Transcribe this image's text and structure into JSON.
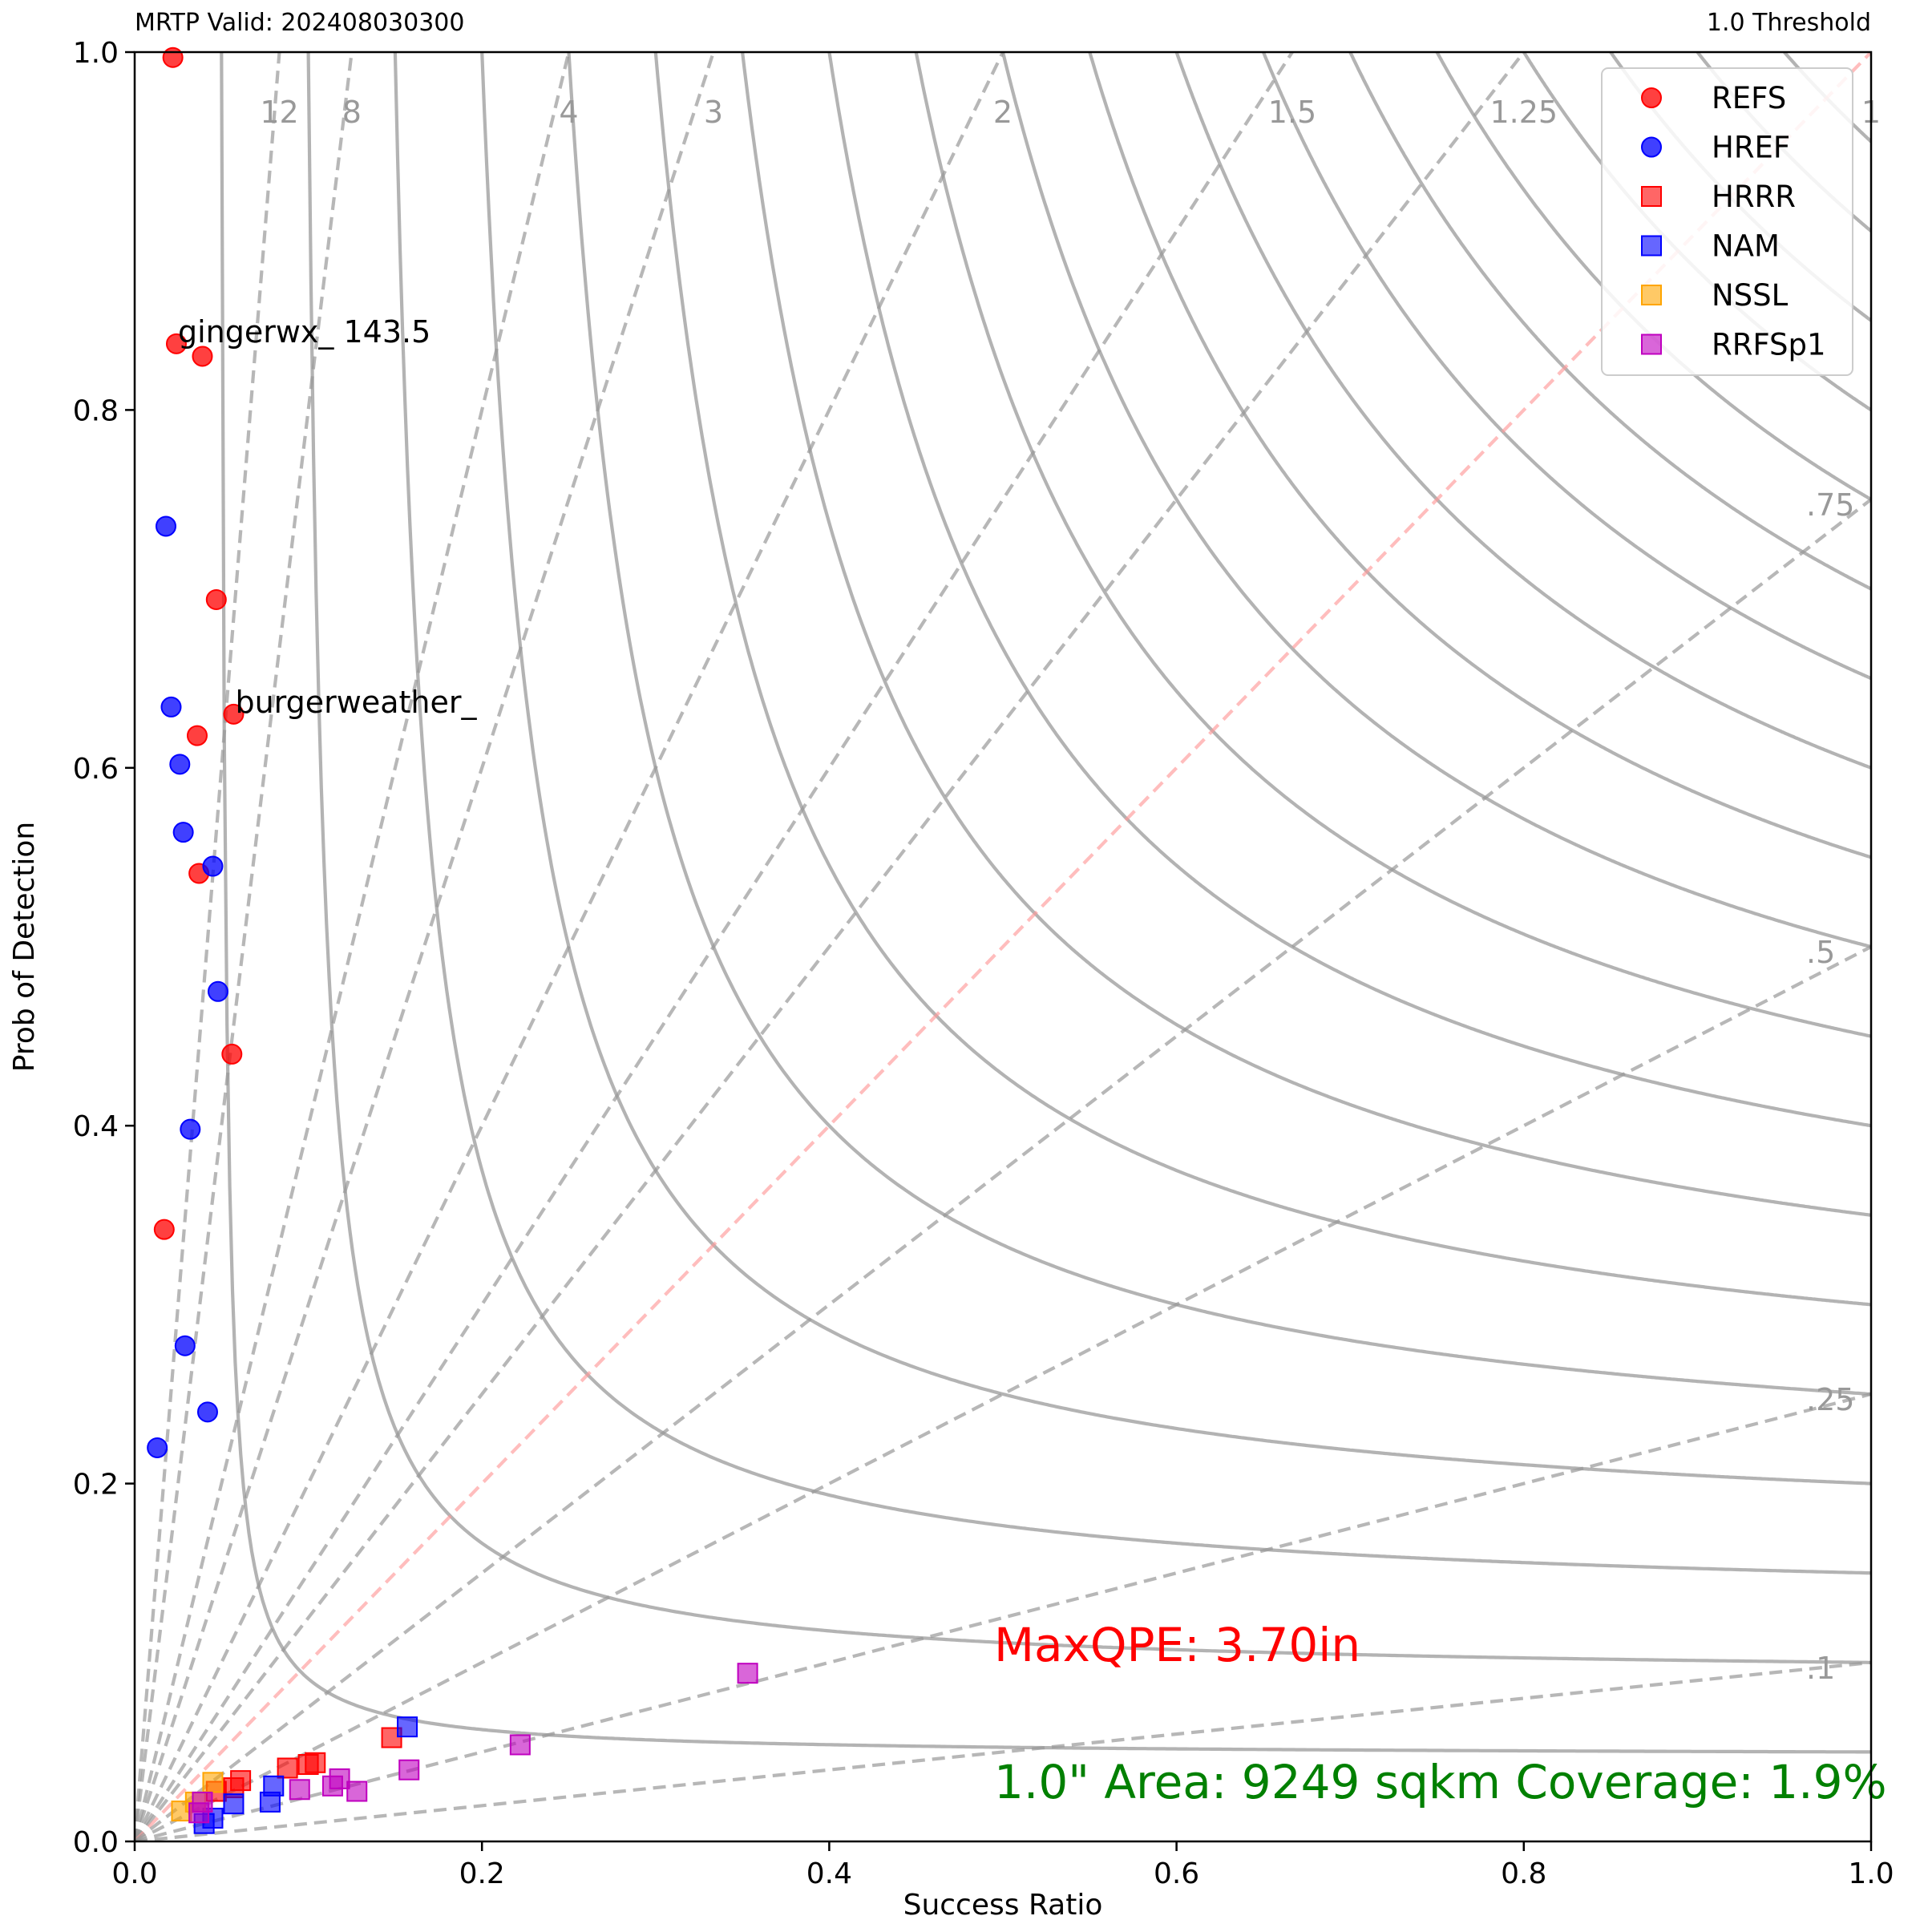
{
  "header": {
    "left": "MRTP Valid: 202408030300",
    "right": "1.0 Threshold"
  },
  "chart_data": {
    "type": "scatter",
    "title": "",
    "xlabel": "Success Ratio",
    "ylabel": "Prob of Detection",
    "xlim": [
      0.0,
      1.0
    ],
    "ylim": [
      0.0,
      1.0
    ],
    "xticks": [
      "0.0",
      "0.2",
      "0.4",
      "0.6",
      "0.8",
      "1.0"
    ],
    "yticks": [
      "0.0",
      "0.2",
      "0.4",
      "0.6",
      "0.8",
      "1.0"
    ],
    "grid": false,
    "legend_position": "top-right",
    "bias_lines": [
      {
        "bias": 12,
        "label": "12"
      },
      {
        "bias": 8,
        "label": "8"
      },
      {
        "bias": 4,
        "label": "4"
      },
      {
        "bias": 3,
        "label": "3"
      },
      {
        "bias": 2,
        "label": "2"
      },
      {
        "bias": 1.5,
        "label": "1.5"
      },
      {
        "bias": 1.25,
        "label": "1.25"
      },
      {
        "bias": 1,
        "label": "1"
      },
      {
        "bias": 0.75,
        "label": ".75"
      },
      {
        "bias": 0.5,
        "label": ".5"
      },
      {
        "bias": 0.25,
        "label": ".25"
      },
      {
        "bias": 0.1,
        "label": ".1"
      }
    ],
    "csi_lines": [
      0.05,
      0.1,
      0.15,
      0.2,
      0.25,
      0.3,
      0.35,
      0.4,
      0.45,
      0.5,
      0.55,
      0.6,
      0.65,
      0.7,
      0.75,
      0.8,
      0.85,
      0.9,
      0.95
    ],
    "series": [
      {
        "name": "REFS",
        "marker": "circle",
        "color": "#ff0000",
        "points": [
          [
            0.022,
            0.997
          ],
          [
            0.024,
            0.837
          ],
          [
            0.039,
            0.83
          ],
          [
            0.047,
            0.694
          ],
          [
            0.057,
            0.63
          ],
          [
            0.036,
            0.618
          ],
          [
            0.037,
            0.541
          ],
          [
            0.056,
            0.44
          ],
          [
            0.017,
            0.342
          ]
        ]
      },
      {
        "name": "HREF",
        "marker": "circle",
        "color": "#0000ff",
        "points": [
          [
            0.018,
            0.735
          ],
          [
            0.021,
            0.634
          ],
          [
            0.026,
            0.602
          ],
          [
            0.028,
            0.564
          ],
          [
            0.045,
            0.545
          ],
          [
            0.048,
            0.475
          ],
          [
            0.032,
            0.398
          ],
          [
            0.029,
            0.277
          ],
          [
            0.042,
            0.24
          ],
          [
            0.013,
            0.22
          ]
        ]
      },
      {
        "name": "HRRR",
        "marker": "square",
        "color": "#ff0000",
        "points": [
          [
            0.148,
            0.058
          ],
          [
            0.104,
            0.044
          ],
          [
            0.1,
            0.043
          ],
          [
            0.088,
            0.041
          ],
          [
            0.061,
            0.034
          ],
          [
            0.057,
            0.03
          ],
          [
            0.047,
            0.028
          ]
        ]
      },
      {
        "name": "NAM",
        "marker": "square",
        "color": "#0000ff",
        "points": [
          [
            0.157,
            0.064
          ],
          [
            0.08,
            0.031
          ],
          [
            0.078,
            0.022
          ],
          [
            0.057,
            0.021
          ],
          [
            0.045,
            0.013
          ],
          [
            0.04,
            0.01
          ]
        ]
      },
      {
        "name": "NSSL",
        "marker": "square",
        "color": "#ffa500",
        "points": [
          [
            0.045,
            0.033
          ],
          [
            0.027,
            0.017
          ],
          [
            0.035,
            0.022
          ]
        ]
      },
      {
        "name": "RRFSp1",
        "marker": "square",
        "color": "#bf00bf",
        "points": [
          [
            0.353,
            0.094
          ],
          [
            0.222,
            0.054
          ],
          [
            0.158,
            0.04
          ],
          [
            0.118,
            0.035
          ],
          [
            0.114,
            0.031
          ],
          [
            0.128,
            0.028
          ],
          [
            0.095,
            0.029
          ],
          [
            0.039,
            0.022
          ],
          [
            0.037,
            0.016
          ]
        ]
      }
    ],
    "annotations": [
      {
        "text": "gingerwx_ 143.5",
        "x": 0.024,
        "y": 0.837
      },
      {
        "text": "burgerweather_",
        "x": 0.057,
        "y": 0.63
      }
    ],
    "overlay_text": [
      {
        "text": "MaxQPE: 3.70in",
        "color": "#ff0000"
      },
      {
        "text": "1.0\" Area: 9249 sqkm Coverage: 1.9%",
        "color": "#008000"
      }
    ]
  }
}
